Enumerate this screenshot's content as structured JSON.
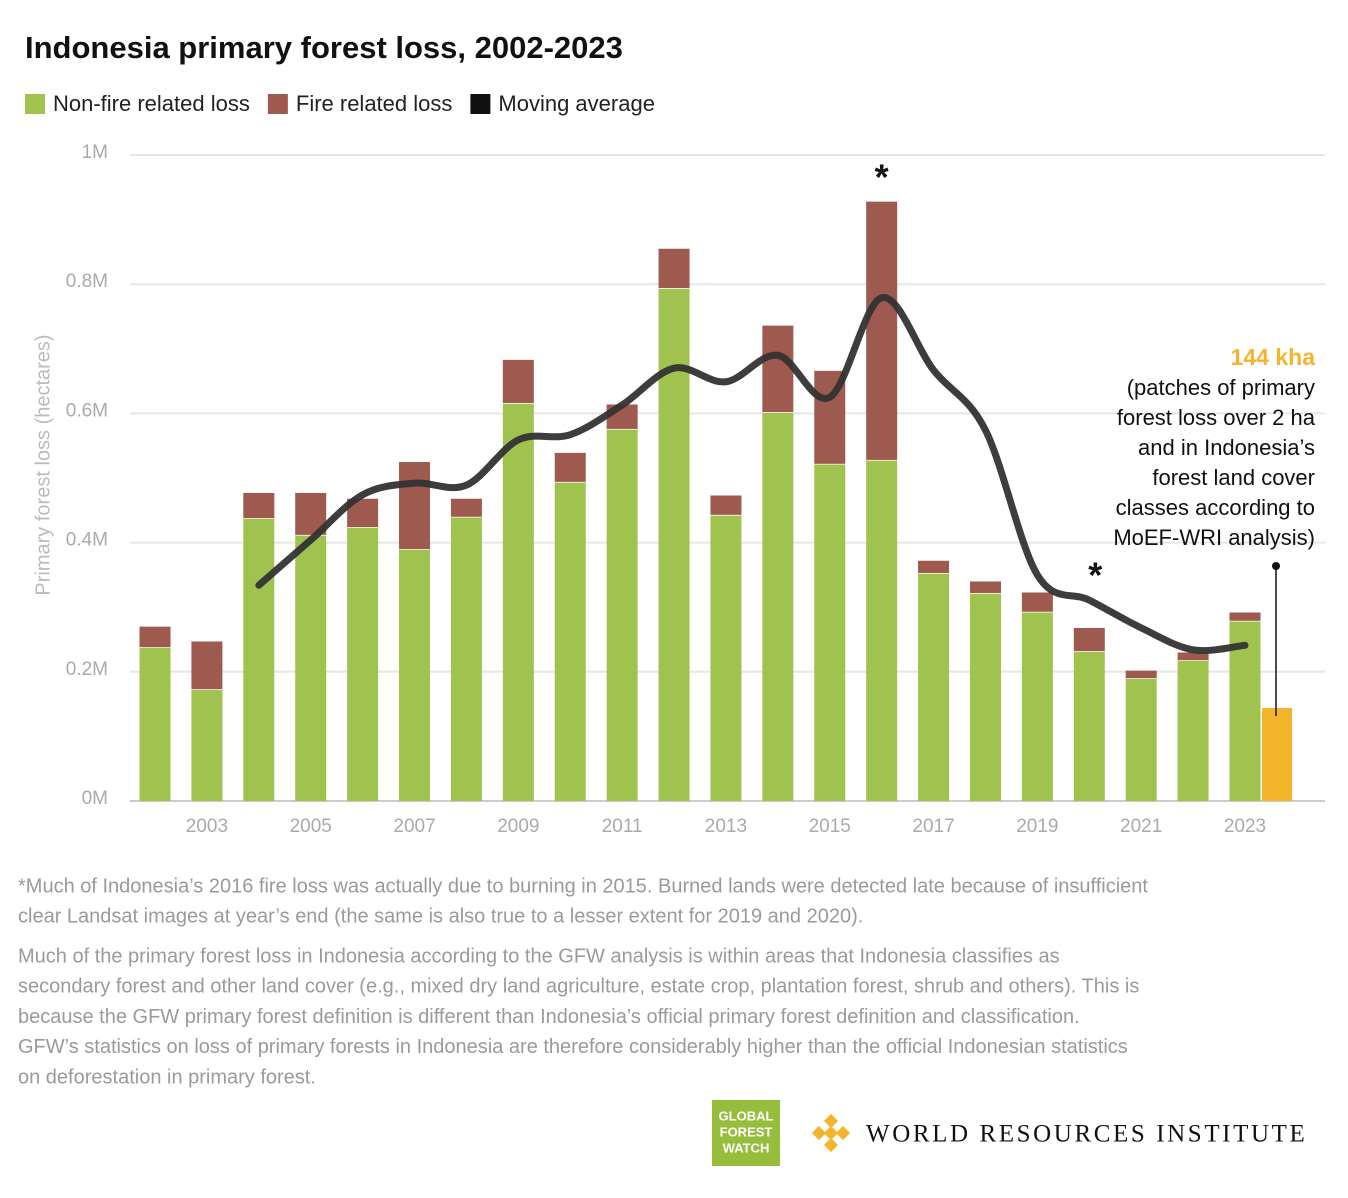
{
  "chart_data": {
    "type": "bar",
    "stacked": true,
    "title": "Indonesia primary forest loss, 2002-2023",
    "y_label": "Primary forest loss (hectares)",
    "categories": [
      null,
      "2003",
      null,
      "2005",
      null,
      "2007",
      null,
      "2009",
      null,
      "2011",
      null,
      "2013",
      null,
      "2015",
      null,
      "2017",
      null,
      "2019",
      null,
      "2021",
      null,
      "2023"
    ],
    "series": [
      {
        "name": "Non-fire related loss",
        "color": "#a0c350",
        "type": "bar",
        "values": [
          238000,
          173000,
          438000,
          412000,
          424000,
          390000,
          440000,
          616000,
          494000,
          576000,
          794000,
          443000,
          602000,
          522000,
          528000,
          353000,
          322000,
          293000,
          232000,
          190000,
          218000,
          279000
        ]
      },
      {
        "name": "Fire related loss",
        "color": "#9e5a4e",
        "type": "bar",
        "values": [
          33000,
          75000,
          40000,
          66000,
          45000,
          136000,
          29000,
          68000,
          46000,
          39000,
          62000,
          31000,
          135000,
          145000,
          401000,
          20000,
          19000,
          31000,
          37000,
          13000,
          13000,
          14000
        ]
      },
      {
        "name": "Moving average",
        "color": "#333333",
        "type": "line",
        "values": [
          null,
          null,
          334000,
          404000,
          474000,
          492000,
          489000,
          559000,
          567000,
          613000,
          670000,
          649000,
          690000,
          625000,
          779000,
          667000,
          574000,
          350000,
          311000,
          268000,
          234000,
          241000
        ]
      }
    ],
    "ylim": [
      0,
      1000000
    ],
    "yticks": [
      {
        "value": 0,
        "label": "0M"
      },
      {
        "value": 200000,
        "label": "0.2M"
      },
      {
        "value": 400000,
        "label": "0.4M"
      },
      {
        "value": 600000,
        "label": "0.6M"
      },
      {
        "value": 800000,
        "label": "0.8M"
      },
      {
        "value": 1000000,
        "label": "1M"
      }
    ],
    "grid": true,
    "annotations": [
      "*",
      "*"
    ],
    "moef": {
      "value": 144000,
      "value_label": "144 kha",
      "color": "#f4b52d",
      "note": [
        "(patches of primary",
        "forest loss over 2 ha",
        "and in Indonesia’s",
        "forest land cover",
        "classes according to",
        "MoEF-WRI analysis)"
      ]
    }
  },
  "footer": {
    "notes": [
      [
        "*Much of Indonesia’s 2016 fire loss was actually due to burning in 2015. Burned lands were detected late because of insufficient",
        "clear Landsat images at year’s end (the same is also true to a lesser extent for 2019 and 2020)."
      ],
      [
        " Much of the primary forest loss in Indonesia according to the GFW analysis is within areas that Indonesia classifies as",
        "secondary forest and other land cover (e.g., mixed dry land agriculture, estate crop, plantation forest, shrub and others). This is",
        "because the GFW primary forest definition is different than Indonesia’s official primary forest definition and classification.",
        "GFW’s statistics on loss of primary forests in Indonesia are therefore considerably higher than the official Indonesian statistics",
        "on deforestation in primary forest."
      ]
    ],
    "gfw_logo": [
      "GLOBAL",
      "FOREST",
      "WATCH"
    ],
    "wri_logo": "WORLD RESOURCES INSTITUTE"
  }
}
